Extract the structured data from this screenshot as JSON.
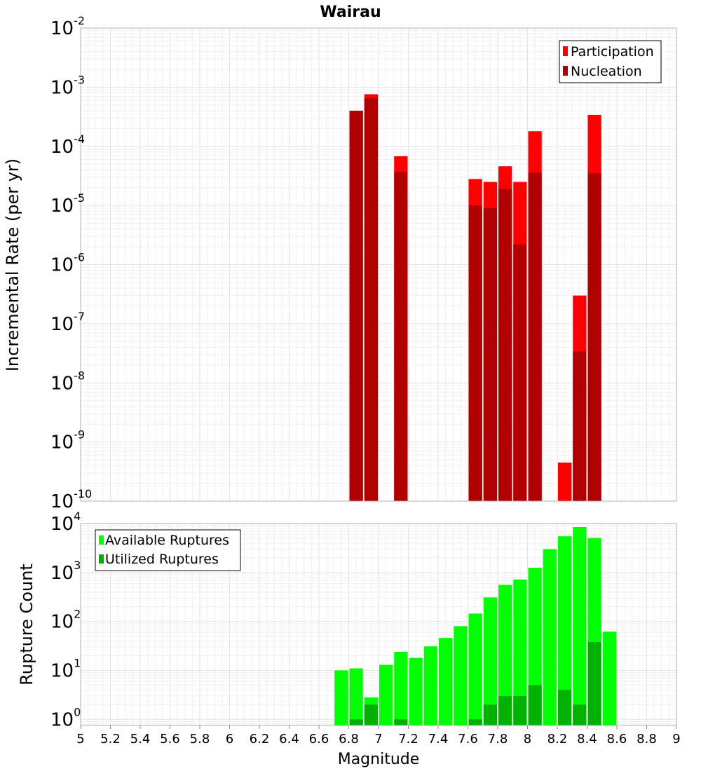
{
  "chart_data": [
    {
      "type": "bar",
      "title": "Wairau",
      "ylabel": "Incremental Rate (per yr)",
      "xlabel": "",
      "xlim": [
        5,
        9
      ],
      "ylim": [
        1e-10,
        0.01
      ],
      "yscale": "log",
      "grid": true,
      "legend_position": "top-right",
      "yticks": [
        {
          "base": "10",
          "exp": "-2",
          "value": 0.01
        },
        {
          "base": "10",
          "exp": "-3",
          "value": 0.001
        },
        {
          "base": "10",
          "exp": "-4",
          "value": 0.0001
        },
        {
          "base": "10",
          "exp": "-5",
          "value": 1e-05
        },
        {
          "base": "10",
          "exp": "-6",
          "value": 1e-06
        },
        {
          "base": "10",
          "exp": "-7",
          "value": 1e-07
        },
        {
          "base": "10",
          "exp": "-8",
          "value": 1e-08
        },
        {
          "base": "10",
          "exp": "-9",
          "value": 1e-09
        },
        {
          "base": "10",
          "exp": "-10",
          "value": 1e-10
        }
      ],
      "series": [
        {
          "name": "Participation",
          "color": "#ff0000",
          "points": [
            {
              "x": 6.85,
              "y": 0.0004
            },
            {
              "x": 6.95,
              "y": 0.00076
            },
            {
              "x": 7.15,
              "y": 6.8e-05
            },
            {
              "x": 7.65,
              "y": 2.8e-05
            },
            {
              "x": 7.75,
              "y": 2.5e-05
            },
            {
              "x": 7.85,
              "y": 4.6e-05
            },
            {
              "x": 7.95,
              "y": 2.5e-05
            },
            {
              "x": 8.05,
              "y": 0.00018
            },
            {
              "x": 8.25,
              "y": 4.5e-10
            },
            {
              "x": 8.35,
              "y": 3e-07
            },
            {
              "x": 8.45,
              "y": 0.00034
            }
          ]
        },
        {
          "name": "Nucleation",
          "color": "#b20000",
          "points": [
            {
              "x": 6.85,
              "y": 0.0004
            },
            {
              "x": 6.95,
              "y": 0.00065
            },
            {
              "x": 7.15,
              "y": 3.7e-05
            },
            {
              "x": 7.65,
              "y": 1e-05
            },
            {
              "x": 7.75,
              "y": 9e-06
            },
            {
              "x": 7.85,
              "y": 1.9e-05
            },
            {
              "x": 7.95,
              "y": 2.2e-06
            },
            {
              "x": 8.05,
              "y": 3.6e-05
            },
            {
              "x": 8.35,
              "y": 3.4e-08
            },
            {
              "x": 8.45,
              "y": 3.5e-05
            }
          ]
        }
      ]
    },
    {
      "type": "bar",
      "title": "",
      "ylabel": "Rupture Count",
      "xlabel": "Magnitude",
      "xlim": [
        5,
        9
      ],
      "ylim": [
        0.75,
        10000
      ],
      "yscale": "log",
      "grid": true,
      "legend_position": "top-left",
      "yticks": [
        {
          "base": "10",
          "exp": "4",
          "value": 10000
        },
        {
          "base": "10",
          "exp": "3",
          "value": 1000
        },
        {
          "base": "10",
          "exp": "2",
          "value": 100
        },
        {
          "base": "10",
          "exp": "1",
          "value": 10
        },
        {
          "base": "10",
          "exp": "0",
          "value": 1
        }
      ],
      "xticks": [
        "5",
        "5.2",
        "5.4",
        "5.6",
        "5.8",
        "6",
        "6.2",
        "6.4",
        "6.6",
        "6.8",
        "7",
        "7.2",
        "7.4",
        "7.6",
        "7.8",
        "8",
        "8.2",
        "8.4",
        "8.6",
        "8.8",
        "9"
      ],
      "series": [
        {
          "name": "Available Ruptures",
          "color": "#00ff00",
          "points": [
            {
              "x": 6.75,
              "y": 10
            },
            {
              "x": 6.85,
              "y": 11
            },
            {
              "x": 6.95,
              "y": 2.8
            },
            {
              "x": 7.05,
              "y": 13
            },
            {
              "x": 7.15,
              "y": 24
            },
            {
              "x": 7.25,
              "y": 18
            },
            {
              "x": 7.35,
              "y": 31
            },
            {
              "x": 7.45,
              "y": 46
            },
            {
              "x": 7.55,
              "y": 80
            },
            {
              "x": 7.65,
              "y": 145
            },
            {
              "x": 7.75,
              "y": 310
            },
            {
              "x": 7.85,
              "y": 560
            },
            {
              "x": 7.95,
              "y": 720
            },
            {
              "x": 8.05,
              "y": 1250
            },
            {
              "x": 8.15,
              "y": 3000
            },
            {
              "x": 8.25,
              "y": 5500
            },
            {
              "x": 8.35,
              "y": 8500
            },
            {
              "x": 8.45,
              "y": 5100
            },
            {
              "x": 8.55,
              "y": 62
            }
          ]
        },
        {
          "name": "Utilized Ruptures",
          "color": "#00b200",
          "points": [
            {
              "x": 6.85,
              "y": 1
            },
            {
              "x": 6.95,
              "y": 2
            },
            {
              "x": 7.15,
              "y": 1
            },
            {
              "x": 7.65,
              "y": 1
            },
            {
              "x": 7.75,
              "y": 2
            },
            {
              "x": 7.85,
              "y": 3
            },
            {
              "x": 7.95,
              "y": 3
            },
            {
              "x": 8.05,
              "y": 5
            },
            {
              "x": 8.25,
              "y": 4
            },
            {
              "x": 8.35,
              "y": 2
            },
            {
              "x": 8.45,
              "y": 38
            }
          ]
        }
      ]
    }
  ]
}
